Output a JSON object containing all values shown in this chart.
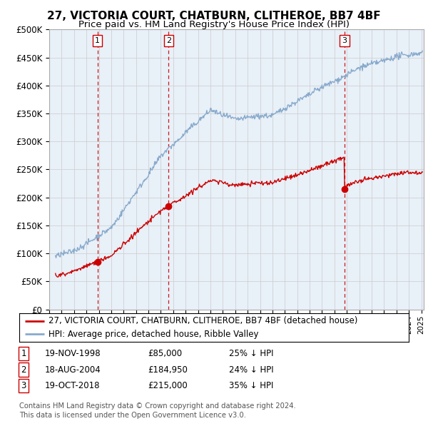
{
  "title": "27, VICTORIA COURT, CHATBURN, CLITHEROE, BB7 4BF",
  "subtitle": "Price paid vs. HM Land Registry's House Price Index (HPI)",
  "ytick_values": [
    0,
    50000,
    100000,
    150000,
    200000,
    250000,
    300000,
    350000,
    400000,
    450000,
    500000
  ],
  "ylim": [
    0,
    500000
  ],
  "xlim_start": 1995.5,
  "xlim_end": 2025.2,
  "sale_dates": [
    1998.885,
    2004.633,
    2018.8
  ],
  "sale_prices": [
    85000,
    184950,
    215000
  ],
  "sale_labels": [
    "1",
    "2",
    "3"
  ],
  "red_line_color": "#cc0000",
  "blue_line_color": "#88aacc",
  "sale_dot_color": "#cc0000",
  "vline_color": "#cc0000",
  "grid_color": "#cccccc",
  "bg_color": "#ddeeff",
  "plot_bg": "#e8f0f8",
  "background_color": "#ffffff",
  "legend_entry1": "27, VICTORIA COURT, CHATBURN, CLITHEROE, BB7 4BF (detached house)",
  "legend_entry2": "HPI: Average price, detached house, Ribble Valley",
  "table_rows": [
    [
      "1",
      "19-NOV-1998",
      "£85,000",
      "25% ↓ HPI"
    ],
    [
      "2",
      "18-AUG-2004",
      "£184,950",
      "24% ↓ HPI"
    ],
    [
      "3",
      "19-OCT-2018",
      "£215,000",
      "35% ↓ HPI"
    ]
  ],
  "footer_text": "Contains HM Land Registry data © Crown copyright and database right 2024.\nThis data is licensed under the Open Government Licence v3.0."
}
